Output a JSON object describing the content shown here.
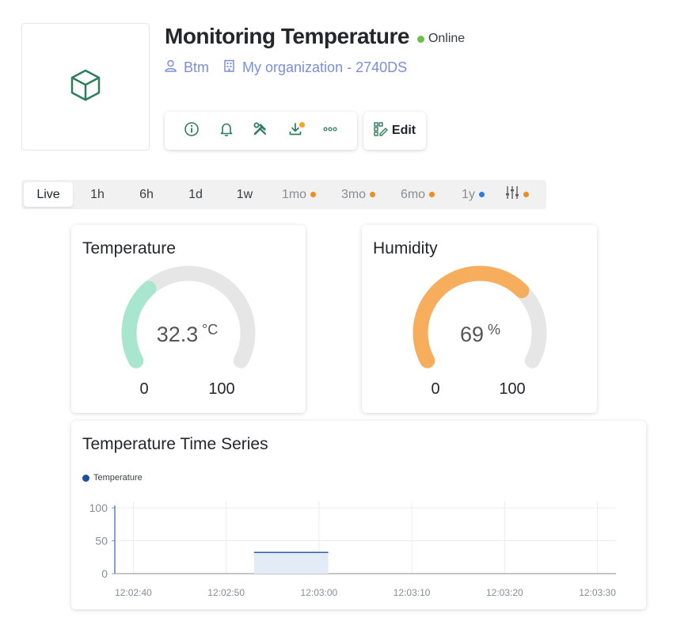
{
  "header": {
    "title": "Monitoring Temperature",
    "status": "Online",
    "owner": "Btm",
    "organization": "My organization - 2740DS"
  },
  "toolbar": {
    "icons": [
      "info-icon",
      "bell-icon",
      "tools-icon",
      "download-icon",
      "more-icon"
    ],
    "edit_label": "Edit"
  },
  "time_range": {
    "items": [
      {
        "label": "Live",
        "active": true,
        "dot": null
      },
      {
        "label": "1h",
        "active": false,
        "dot": null
      },
      {
        "label": "6h",
        "active": false,
        "dot": null
      },
      {
        "label": "1d",
        "active": false,
        "dot": null
      },
      {
        "label": "1w",
        "active": false,
        "dot": null
      },
      {
        "label": "1mo",
        "active": false,
        "dot": "#f08c1e"
      },
      {
        "label": "3mo",
        "active": false,
        "dot": "#f08c1e"
      },
      {
        "label": "6mo",
        "active": false,
        "dot": "#f08c1e"
      },
      {
        "label": "1y",
        "active": false,
        "dot": "#2f7be5"
      }
    ],
    "settings_dot": "#f08c1e"
  },
  "gauges": {
    "temperature": {
      "title": "Temperature",
      "value": 32.3,
      "value_text": "32.3",
      "unit": "°C",
      "min": 0,
      "max": 100,
      "min_label": "0",
      "max_label": "100",
      "color": "#a8e6cf"
    },
    "humidity": {
      "title": "Humidity",
      "value": 69,
      "value_text": "69",
      "unit": "%",
      "min": 0,
      "max": 100,
      "min_label": "0",
      "max_label": "100",
      "color": "#f7ae5c"
    }
  },
  "timeseries": {
    "title": "Temperature Time Series",
    "legend": "Temperature",
    "color": "#1f4e9c"
  },
  "chart_data": {
    "type": "area",
    "title": "Temperature Time Series",
    "xlabel": "",
    "ylabel": "",
    "x_ticks": [
      "12:02:40",
      "12:02:50",
      "12:03:00",
      "12:03:10",
      "12:03:20",
      "12:03:30"
    ],
    "y_ticks": [
      "100",
      "50",
      "0"
    ],
    "ylim": [
      0,
      100
    ],
    "xlim": [
      "12:02:38",
      "12:03:32"
    ],
    "grid": true,
    "legend_position": "top-left",
    "series": [
      {
        "name": "Temperature",
        "x": [
          "12:02:53",
          "12:03:01"
        ],
        "values": [
          32.3,
          32.3
        ]
      }
    ]
  }
}
